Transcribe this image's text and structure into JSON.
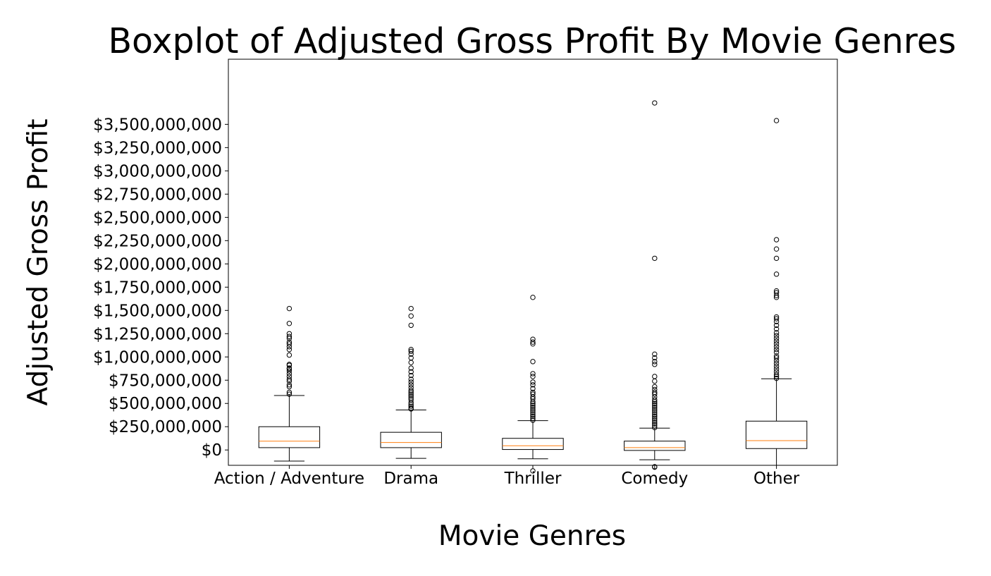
{
  "chart_data": {
    "type": "boxplot",
    "title": "Boxplot of Adjusted Gross Profit By Movie Genres",
    "xlabel": "Movie Genres",
    "ylabel": "Adjusted Gross Profit",
    "ylim": [
      -165000000,
      4200000000
    ],
    "yticks": [
      0,
      250000000,
      500000000,
      750000000,
      1000000000,
      1250000000,
      1500000000,
      1750000000,
      2000000000,
      2250000000,
      2500000000,
      2750000000,
      3000000000,
      3250000000,
      3500000000
    ],
    "ytick_labels": [
      "$0",
      "$250,000,000",
      "$500,000,000",
      "$750,000,000",
      "$1,000,000,000",
      "$1,250,000,000",
      "$1,500,000,000",
      "$1,750,000,000",
      "$2,000,000,000",
      "$2,250,000,000",
      "$2,500,000,000",
      "$2,750,000,000",
      "$3,000,000,000",
      "$3,250,000,000",
      "$3,500,000,000"
    ],
    "grid": false,
    "legend": "none",
    "categories": [
      "Action / Adventure",
      "Drama",
      "Thriller",
      "Comedy",
      "Other"
    ],
    "boxes": [
      {
        "category": "Action / Adventure",
        "whisker_low": -120000000,
        "q1": 25000000,
        "median": 95000000,
        "q3": 250000000,
        "whisker_high": 585000000,
        "outliers": [
          600000000,
          620000000,
          680000000,
          700000000,
          740000000,
          760000000,
          790000000,
          820000000,
          850000000,
          870000000,
          880000000,
          910000000,
          920000000,
          1020000000,
          1080000000,
          1110000000,
          1140000000,
          1160000000,
          1200000000,
          1220000000,
          1250000000,
          1360000000,
          1520000000
        ]
      },
      {
        "category": "Drama",
        "whisker_low": -90000000,
        "q1": 25000000,
        "median": 80000000,
        "q3": 190000000,
        "whisker_high": 430000000,
        "outliers": [
          440000000,
          450000000,
          470000000,
          490000000,
          510000000,
          540000000,
          560000000,
          580000000,
          600000000,
          620000000,
          640000000,
          670000000,
          700000000,
          730000000,
          760000000,
          800000000,
          840000000,
          880000000,
          940000000,
          990000000,
          1030000000,
          1060000000,
          1080000000,
          1340000000,
          1440000000,
          1520000000
        ]
      },
      {
        "category": "Thriller",
        "whisker_low": -95000000,
        "q1": 5000000,
        "median": 45000000,
        "q3": 125000000,
        "whisker_high": 315000000,
        "outliers": [
          -225000000,
          320000000,
          340000000,
          360000000,
          380000000,
          400000000,
          420000000,
          440000000,
          460000000,
          480000000,
          500000000,
          520000000,
          550000000,
          570000000,
          600000000,
          620000000,
          660000000,
          700000000,
          730000000,
          790000000,
          820000000,
          950000000,
          1140000000,
          1160000000,
          1190000000,
          1640000000
        ]
      },
      {
        "category": "Comedy",
        "whisker_low": -105000000,
        "q1": -5000000,
        "median": 25000000,
        "q3": 95000000,
        "whisker_high": 235000000,
        "outliers": [
          -180000000,
          -185000000,
          240000000,
          260000000,
          280000000,
          300000000,
          320000000,
          340000000,
          360000000,
          380000000,
          400000000,
          420000000,
          440000000,
          460000000,
          480000000,
          500000000,
          520000000,
          540000000,
          570000000,
          600000000,
          620000000,
          650000000,
          680000000,
          740000000,
          790000000,
          920000000,
          950000000,
          990000000,
          1030000000,
          2060000000,
          3730000000
        ]
      },
      {
        "category": "Other",
        "whisker_low": -165000000,
        "q1": 15000000,
        "median": 100000000,
        "q3": 310000000,
        "whisker_high": 765000000,
        "outliers": [
          770000000,
          790000000,
          810000000,
          840000000,
          870000000,
          900000000,
          930000000,
          960000000,
          990000000,
          1010000000,
          1050000000,
          1080000000,
          1110000000,
          1140000000,
          1170000000,
          1200000000,
          1230000000,
          1260000000,
          1300000000,
          1340000000,
          1380000000,
          1410000000,
          1430000000,
          1640000000,
          1660000000,
          1690000000,
          1710000000,
          1890000000,
          2060000000,
          2160000000,
          2260000000,
          3540000000
        ]
      }
    ],
    "colors": {
      "box": "#000000",
      "median": "#ff7f0e",
      "whisker": "#000000",
      "outlier_edge": "#000000",
      "background": "#ffffff"
    }
  }
}
